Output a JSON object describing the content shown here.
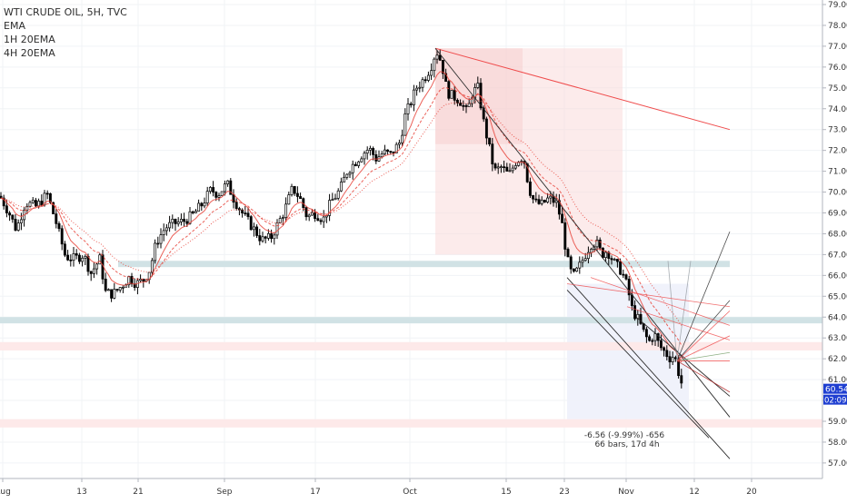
{
  "legend": {
    "title": "WTI CRUDE OIL, 5H, TVC",
    "indicators": [
      "EMA",
      "1H 20EMA",
      "4H 20EMA"
    ]
  },
  "colors": {
    "bg": "#ffffff",
    "grid": "#f0f3f6",
    "candle": "#000000",
    "ema": "#e8453c",
    "zone_blue": "#cfe0e4",
    "zone_pink": "#fde8e8",
    "projection_red": "#f9dada",
    "projection_blue": "#eef1fb",
    "channel": "#2e2e2e",
    "fib_red": "#ef4b4b",
    "price_label_bg": "#1f3fd1",
    "price_label_fg": "#ffffff"
  },
  "price_label": {
    "price": "60.54",
    "countdown": "02:09:0"
  },
  "measure_label": {
    "line1": "-6.56 (-9.99%) -656",
    "line2": "66 bars, 17d 4h"
  },
  "chart_data": {
    "type": "candlestick",
    "title": "WTI CRUDE OIL, 5H, TVC",
    "xlabel": "",
    "ylabel": "",
    "ylim": [
      56.8,
      79.3
    ],
    "x_ticks": [
      "Aug",
      "13",
      "21",
      "Sep",
      "17",
      "Oct",
      "15",
      "23",
      "Nov",
      "12",
      "20"
    ],
    "y_ticks": [
      "57.00",
      "58.00",
      "59.00",
      "60.00",
      "61.00",
      "62.00",
      "63.00",
      "64.00",
      "65.00",
      "66.00",
      "67.00",
      "68.00",
      "69.00",
      "70.00",
      "71.00",
      "72.00",
      "73.00",
      "74.00",
      "75.00",
      "76.00",
      "77.00",
      "78.00",
      "79.00"
    ],
    "grid": true,
    "close_path": [
      [
        0,
        69.8
      ],
      [
        10,
        69.0
      ],
      [
        18,
        68.2
      ],
      [
        28,
        69.5
      ],
      [
        40,
        69.3
      ],
      [
        52,
        69.9
      ],
      [
        62,
        68.5
      ],
      [
        72,
        66.9
      ],
      [
        82,
        66.8
      ],
      [
        92,
        67.0
      ],
      [
        100,
        66.1
      ],
      [
        110,
        66.8
      ],
      [
        116,
        65.2
      ],
      [
        124,
        65.1
      ],
      [
        134,
        65.5
      ],
      [
        142,
        65.9
      ],
      [
        150,
        65.6
      ],
      [
        158,
        65.8
      ],
      [
        165,
        66.3
      ],
      [
        172,
        67.6
      ],
      [
        182,
        68.3
      ],
      [
        192,
        68.5
      ],
      [
        202,
        68.6
      ],
      [
        212,
        68.9
      ],
      [
        222,
        69.4
      ],
      [
        232,
        70.1
      ],
      [
        240,
        69.9
      ],
      [
        250,
        70.4
      ],
      [
        258,
        69.6
      ],
      [
        268,
        68.9
      ],
      [
        278,
        68.3
      ],
      [
        288,
        67.7
      ],
      [
        298,
        67.8
      ],
      [
        305,
        68.4
      ],
      [
        313,
        69.1
      ],
      [
        322,
        70.2
      ],
      [
        330,
        69.7
      ],
      [
        338,
        68.8
      ],
      [
        346,
        69.0
      ],
      [
        356,
        68.7
      ],
      [
        364,
        69.5
      ],
      [
        374,
        70.1
      ],
      [
        382,
        71.0
      ],
      [
        390,
        71.4
      ],
      [
        398,
        71.8
      ],
      [
        406,
        72.1
      ],
      [
        414,
        71.6
      ],
      [
        422,
        71.9
      ],
      [
        430,
        71.8
      ],
      [
        440,
        72.4
      ],
      [
        446,
        73.7
      ],
      [
        452,
        74.3
      ],
      [
        458,
        75.0
      ],
      [
        466,
        75.4
      ],
      [
        474,
        76.0
      ],
      [
        480,
        76.8
      ],
      [
        486,
        76.2
      ],
      [
        492,
        74.8
      ],
      [
        498,
        74.6
      ],
      [
        506,
        74.4
      ],
      [
        514,
        73.8
      ],
      [
        520,
        74.8
      ],
      [
        526,
        75.0
      ],
      [
        532,
        73.4
      ],
      [
        538,
        72.2
      ],
      [
        544,
        71.0
      ],
      [
        552,
        71.2
      ],
      [
        560,
        70.8
      ],
      [
        568,
        71.5
      ],
      [
        576,
        71.7
      ],
      [
        582,
        70.2
      ],
      [
        588,
        69.5
      ],
      [
        596,
        69.4
      ],
      [
        604,
        69.7
      ],
      [
        612,
        69.5
      ],
      [
        618,
        68.6
      ],
      [
        624,
        66.8
      ],
      [
        630,
        65.9
      ],
      [
        636,
        66.3
      ],
      [
        644,
        67.0
      ],
      [
        650,
        67.5
      ],
      [
        656,
        67.6
      ],
      [
        662,
        67.0
      ],
      [
        668,
        67.2
      ],
      [
        676,
        66.6
      ],
      [
        684,
        66.2
      ],
      [
        690,
        65.5
      ],
      [
        696,
        64.3
      ],
      [
        702,
        63.9
      ],
      [
        708,
        63.3
      ],
      [
        714,
        62.8
      ],
      [
        720,
        63.2
      ],
      [
        726,
        62.6
      ],
      [
        732,
        62.3
      ],
      [
        738,
        62.0
      ],
      [
        742,
        62.2
      ],
      [
        748,
        61.1
      ],
      [
        752,
        60.54
      ]
    ],
    "series": [
      {
        "name": "EMA"
      },
      {
        "name": "1H 20EMA"
      },
      {
        "name": "4H 20EMA"
      }
    ],
    "zones": [
      {
        "type": "support_blue",
        "from": 66.4,
        "to": 66.7,
        "x_start": 130,
        "x_end": 803
      },
      {
        "type": "support_blue",
        "from": 63.7,
        "to": 64.0,
        "x_start": 0,
        "x_end": 905
      },
      {
        "type": "resistance_pink",
        "from": 62.4,
        "to": 62.8,
        "x_start": 0,
        "x_end": 905
      },
      {
        "type": "resistance_pink",
        "from": 58.7,
        "to": 59.1,
        "x_start": 0,
        "x_end": 905
      }
    ],
    "projection": {
      "x_start": 479,
      "x_end": 685,
      "price_top": 76.9,
      "price_bottom": 67.0
    },
    "measure": {
      "x_start": 624,
      "x_end": 758,
      "price_top": 65.6,
      "price_bottom": 59.1
    }
  }
}
